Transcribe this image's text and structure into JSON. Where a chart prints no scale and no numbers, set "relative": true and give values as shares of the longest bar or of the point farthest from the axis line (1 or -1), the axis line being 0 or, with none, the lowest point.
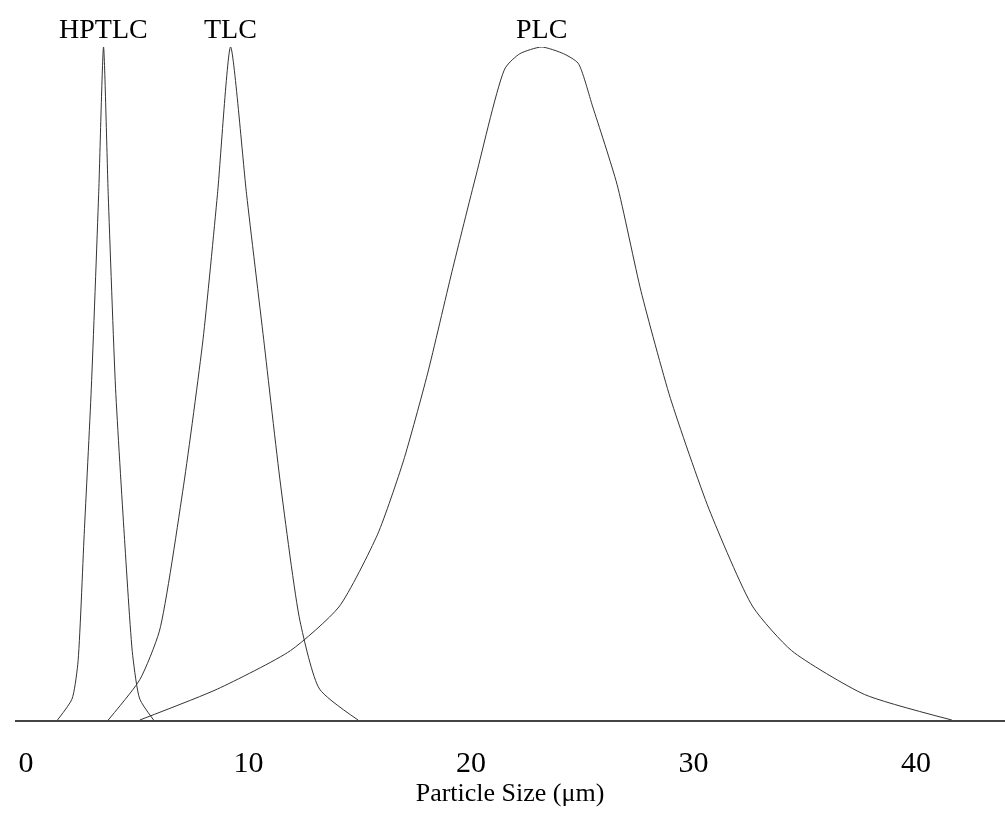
{
  "chart_data": {
    "type": "line",
    "relative": true,
    "xlabel": "Particle Size (μm)",
    "xlim": [
      -0.5,
      44
    ],
    "xticks": [
      0,
      10,
      20,
      30,
      40
    ],
    "legend": false,
    "marker": "none",
    "line_style": "solid",
    "series": [
      {
        "name": "HPTLC",
        "color": "#333333",
        "x": [
          1.41,
          2.06,
          2.32,
          2.61,
          2.93,
          3.26,
          3.48,
          3.69,
          4.02,
          4.41,
          4.79,
          5.11,
          5.73
        ],
        "values": [
          0,
          0.031,
          0.082,
          0.276,
          0.493,
          0.781,
          1,
          0.781,
          0.493,
          0.276,
          0.096,
          0.031,
          0
        ]
      },
      {
        "name": "TLC",
        "color": "#333333",
        "x": [
          3.69,
          5.11,
          5.99,
          7.08,
          7.95,
          8.6,
          9.19,
          9.91,
          10.68,
          11.44,
          12.31,
          13.19,
          14.92
        ],
        "values": [
          0,
          0.06,
          0.132,
          0.349,
          0.565,
          0.781,
          1,
          0.781,
          0.565,
          0.349,
          0.147,
          0.046,
          0
        ]
      },
      {
        "name": "PLC",
        "color": "#333333",
        "x": [
          5.11,
          8.6,
          11.88,
          14.06,
          15.8,
          16.96,
          18.04,
          19.14,
          20.23,
          21.54,
          22.19,
          23.17,
          24.16,
          24.81,
          25.47,
          26.56,
          27.64,
          28.96,
          30.7,
          32.67,
          34.41,
          37.68,
          41.61
        ],
        "values": [
          0,
          0.046,
          0.103,
          0.168,
          0.276,
          0.385,
          0.514,
          0.666,
          0.81,
          0.969,
          0.99,
          1,
          0.99,
          0.976,
          0.911,
          0.796,
          0.637,
          0.478,
          0.313,
          0.168,
          0.103,
          0.038,
          0
        ]
      }
    ]
  }
}
